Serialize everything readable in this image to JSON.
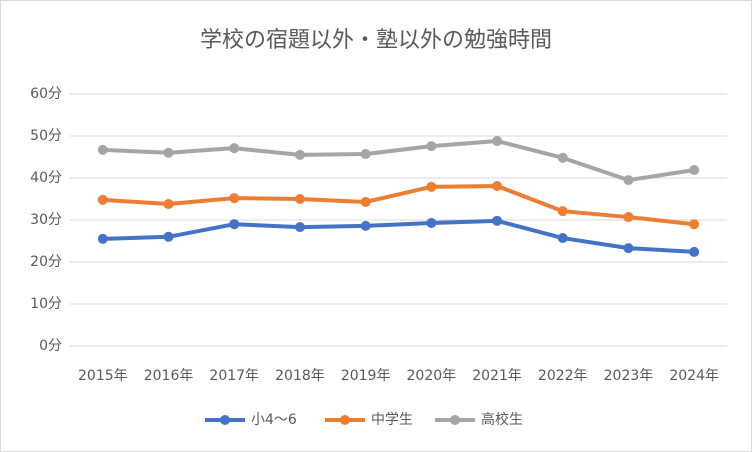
{
  "chart_data": {
    "type": "line",
    "title": "学校の宿題以外・塾以外の勉強時間",
    "categories": [
      "2015年",
      "2016年",
      "2017年",
      "2018年",
      "2019年",
      "2020年",
      "2021年",
      "2022年",
      "2023年",
      "2024年"
    ],
    "series": [
      {
        "name": "小4～6",
        "color": "#4472c4",
        "values": [
          25.5,
          26.0,
          29.0,
          28.3,
          28.6,
          29.3,
          29.8,
          25.7,
          23.3,
          22.4
        ]
      },
      {
        "name": "中学生",
        "color": "#ed7d31",
        "values": [
          34.8,
          33.8,
          35.2,
          35.0,
          34.3,
          37.9,
          38.1,
          32.1,
          30.7,
          29.0
        ]
      },
      {
        "name": "高校生",
        "color": "#a5a5a5",
        "values": [
          46.7,
          46.0,
          47.1,
          45.5,
          45.7,
          47.6,
          48.8,
          44.8,
          39.5,
          41.9
        ]
      }
    ],
    "ylim": [
      0,
      60
    ],
    "yticks": [
      {
        "value": 0,
        "label": "0分"
      },
      {
        "value": 10,
        "label": "10分"
      },
      {
        "value": 20,
        "label": "20分"
      },
      {
        "value": 30,
        "label": "30分"
      },
      {
        "value": 40,
        "label": "40分"
      },
      {
        "value": 50,
        "label": "50分"
      },
      {
        "value": 60,
        "label": "60分"
      }
    ],
    "grid": true,
    "legend": "bottom"
  }
}
